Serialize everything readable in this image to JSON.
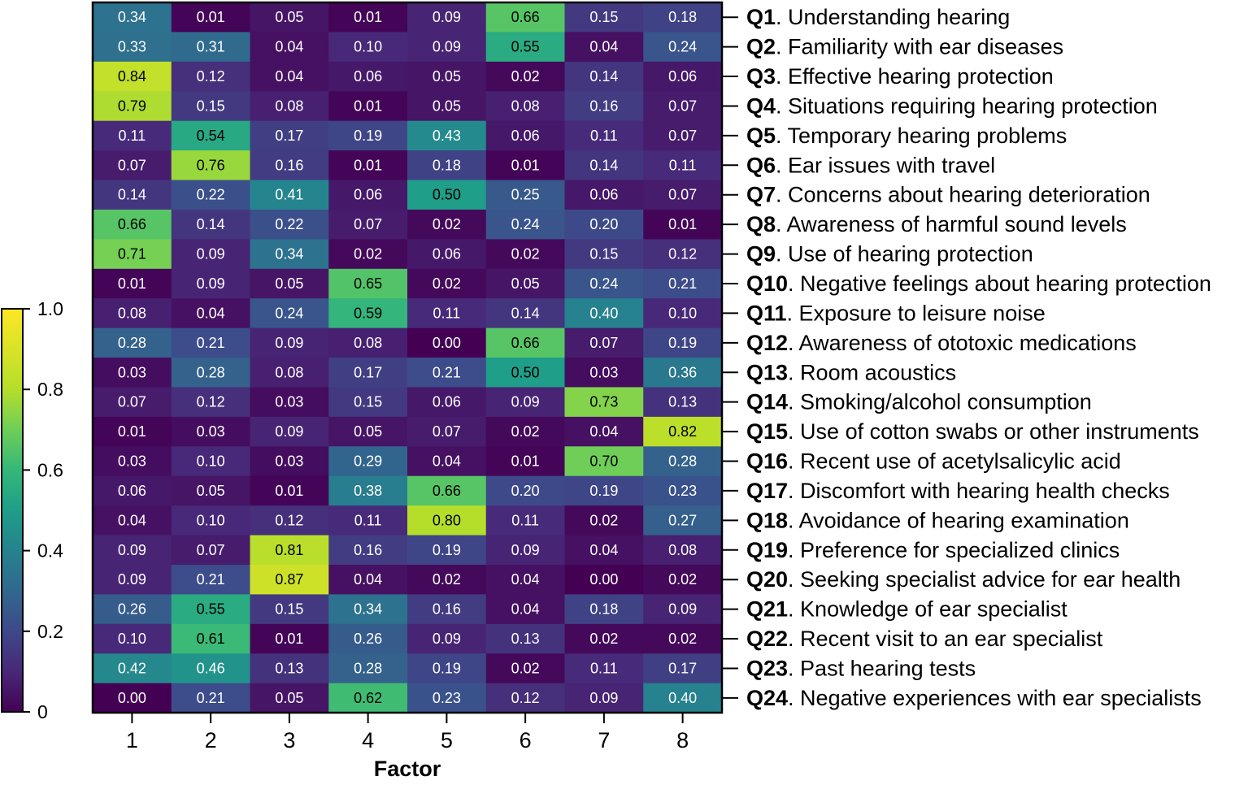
{
  "chart_data": {
    "type": "heatmap",
    "xlabel": "Factor",
    "x_categories": [
      "1",
      "2",
      "3",
      "4",
      "5",
      "6",
      "7",
      "8"
    ],
    "rows": [
      {
        "id": "Q1",
        "label": "Understanding hearing"
      },
      {
        "id": "Q2",
        "label": "Familiarity with ear diseases"
      },
      {
        "id": "Q3",
        "label": "Effective hearing protection"
      },
      {
        "id": "Q4",
        "label": "Situations requiring hearing protection"
      },
      {
        "id": "Q5",
        "label": "Temporary hearing problems"
      },
      {
        "id": "Q6",
        "label": "Ear issues with travel"
      },
      {
        "id": "Q7",
        "label": "Concerns about hearing deterioration"
      },
      {
        "id": "Q8",
        "label": "Awareness of harmful sound levels"
      },
      {
        "id": "Q9",
        "label": "Use of hearing protection"
      },
      {
        "id": "Q10",
        "label": "Negative feelings about hearing protection"
      },
      {
        "id": "Q11",
        "label": "Exposure to leisure noise"
      },
      {
        "id": "Q12",
        "label": "Awareness of ototoxic medications"
      },
      {
        "id": "Q13",
        "label": "Room acoustics"
      },
      {
        "id": "Q14",
        "label": "Smoking/alcohol consumption"
      },
      {
        "id": "Q15",
        "label": "Use of cotton swabs or other instruments"
      },
      {
        "id": "Q16",
        "label": "Recent use of acetylsalicylic acid"
      },
      {
        "id": "Q17",
        "label": "Discomfort with hearing health checks"
      },
      {
        "id": "Q18",
        "label": "Avoidance of hearing examination"
      },
      {
        "id": "Q19",
        "label": "Preference for specialized clinics"
      },
      {
        "id": "Q20",
        "label": "Seeking specialist advice for ear health"
      },
      {
        "id": "Q21",
        "label": "Knowledge of ear specialist"
      },
      {
        "id": "Q22",
        "label": "Recent visit to an ear specialist"
      },
      {
        "id": "Q23",
        "label": "Past hearing tests"
      },
      {
        "id": "Q24",
        "label": "Negative experiences with ear specialists"
      }
    ],
    "values": [
      [
        "0.34",
        "0.01",
        "0.05",
        "0.01",
        "0.09",
        "0.66",
        "0.15",
        "0.18"
      ],
      [
        "0.33",
        "0.31",
        "0.04",
        "0.10",
        "0.09",
        "0.55",
        "0.04",
        "0.24"
      ],
      [
        "0.84",
        "0.12",
        "0.04",
        "0.06",
        "0.05",
        "0.02",
        "0.14",
        "0.06"
      ],
      [
        "0.79",
        "0.15",
        "0.08",
        "0.01",
        "0.05",
        "0.08",
        "0.16",
        "0.07"
      ],
      [
        "0.11",
        "0.54",
        "0.17",
        "0.19",
        "0.43",
        "0.06",
        "0.11",
        "0.07"
      ],
      [
        "0.07",
        "0.76",
        "0.16",
        "0.01",
        "0.18",
        "0.01",
        "0.14",
        "0.11"
      ],
      [
        "0.14",
        "0.22",
        "0.41",
        "0.06",
        "0.50",
        "0.25",
        "0.06",
        "0.07"
      ],
      [
        "0.66",
        "0.14",
        "0.22",
        "0.07",
        "0.02",
        "0.24",
        "0.20",
        "0.01"
      ],
      [
        "0.71",
        "0.09",
        "0.34",
        "0.02",
        "0.06",
        "0.02",
        "0.15",
        "0.12"
      ],
      [
        "0.01",
        "0.09",
        "0.05",
        "0.65",
        "0.02",
        "0.05",
        "0.24",
        "0.21"
      ],
      [
        "0.08",
        "0.04",
        "0.24",
        "0.59",
        "0.11",
        "0.14",
        "0.40",
        "0.10"
      ],
      [
        "0.28",
        "0.21",
        "0.09",
        "0.08",
        "0.00",
        "0.66",
        "0.07",
        "0.19"
      ],
      [
        "0.03",
        "0.28",
        "0.08",
        "0.17",
        "0.21",
        "0.50",
        "0.03",
        "0.36"
      ],
      [
        "0.07",
        "0.12",
        "0.03",
        "0.15",
        "0.06",
        "0.09",
        "0.73",
        "0.13"
      ],
      [
        "0.01",
        "0.03",
        "0.09",
        "0.05",
        "0.07",
        "0.02",
        "0.04",
        "0.82"
      ],
      [
        "0.03",
        "0.10",
        "0.03",
        "0.29",
        "0.04",
        "0.01",
        "0.70",
        "0.28"
      ],
      [
        "0.06",
        "0.05",
        "0.01",
        "0.38",
        "0.66",
        "0.20",
        "0.19",
        "0.23"
      ],
      [
        "0.04",
        "0.10",
        "0.12",
        "0.11",
        "0.80",
        "0.11",
        "0.02",
        "0.27"
      ],
      [
        "0.09",
        "0.07",
        "0.81",
        "0.16",
        "0.19",
        "0.09",
        "0.04",
        "0.08"
      ],
      [
        "0.09",
        "0.21",
        "0.87",
        "0.04",
        "0.02",
        "0.04",
        "0.00",
        "0.02"
      ],
      [
        "0.26",
        "0.55",
        "0.15",
        "0.34",
        "0.16",
        "0.04",
        "0.18",
        "0.09"
      ],
      [
        "0.10",
        "0.61",
        "0.01",
        "0.26",
        "0.09",
        "0.13",
        "0.02",
        "0.02"
      ],
      [
        "0.42",
        "0.46",
        "0.13",
        "0.28",
        "0.19",
        "0.02",
        "0.11",
        "0.17"
      ],
      [
        "0.00",
        "0.21",
        "0.05",
        "0.62",
        "0.23",
        "0.12",
        "0.09",
        "0.40"
      ]
    ],
    "colorbar": {
      "colormap": "viridis",
      "range": [
        0,
        1.0
      ],
      "ticks": [
        "0",
        "0.2",
        "0.4",
        "0.6",
        "0.8",
        "1.0"
      ],
      "placement": "left"
    },
    "grid": false
  }
}
